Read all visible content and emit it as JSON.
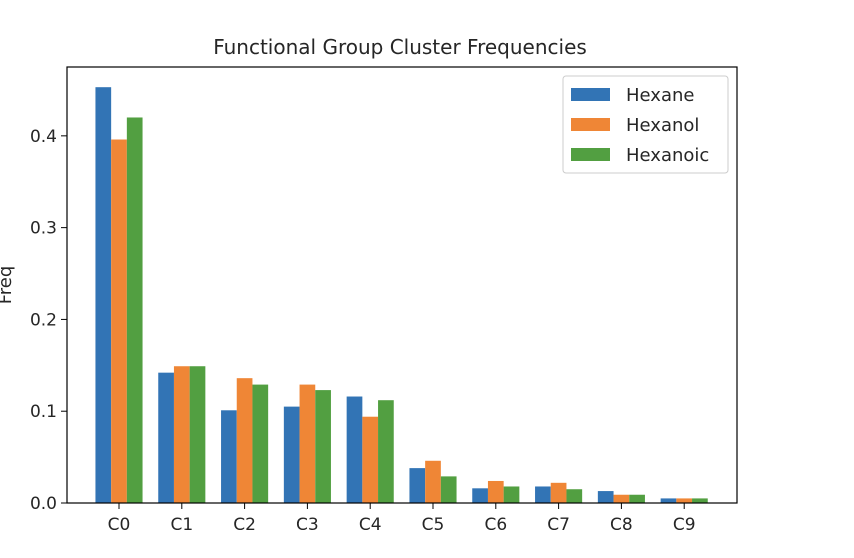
{
  "chart_data": {
    "type": "bar",
    "title": "Functional Group Cluster Frequencies",
    "xlabel": "",
    "ylabel": "Freq",
    "categories": [
      "C0",
      "C1",
      "C2",
      "C3",
      "C4",
      "C5",
      "C6",
      "C7",
      "C8",
      "C9"
    ],
    "series": [
      {
        "name": "Hexane",
        "color": "#3274b5",
        "values": [
          0.453,
          0.142,
          0.101,
          0.105,
          0.116,
          0.038,
          0.016,
          0.018,
          0.013,
          0.005
        ]
      },
      {
        "name": "Hexanol",
        "color": "#ef8636",
        "values": [
          0.396,
          0.149,
          0.136,
          0.129,
          0.094,
          0.046,
          0.024,
          0.022,
          0.009,
          0.005
        ]
      },
      {
        "name": "Hexanoic",
        "color": "#529f41",
        "values": [
          0.42,
          0.149,
          0.129,
          0.123,
          0.112,
          0.029,
          0.018,
          0.015,
          0.009,
          0.005
        ]
      }
    ],
    "ylim": [
      0,
      0.475
    ],
    "yticks": [
      0.0,
      0.1,
      0.2,
      0.3,
      0.4
    ],
    "ytick_labels": [
      "0.0",
      "0.1",
      "0.2",
      "0.3",
      "0.4"
    ],
    "grid": false,
    "legend_position": "top-right"
  }
}
